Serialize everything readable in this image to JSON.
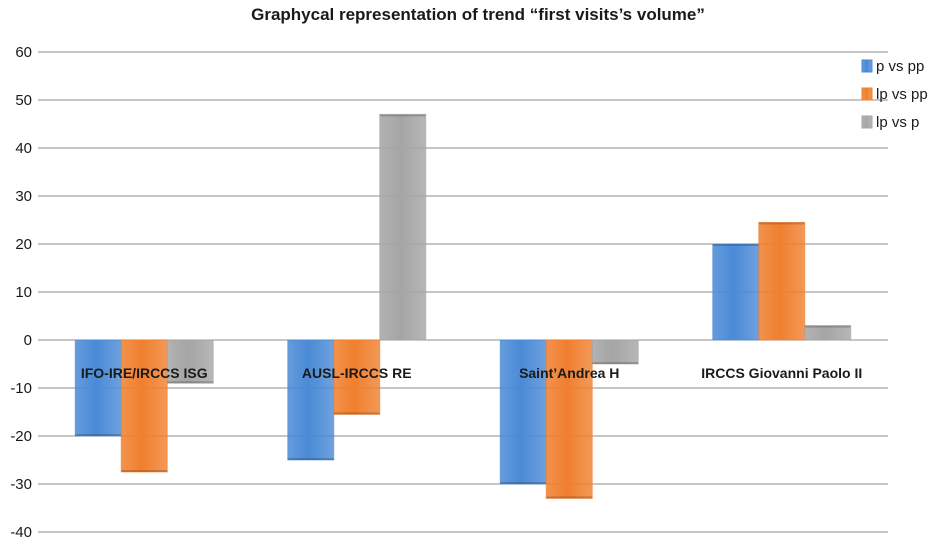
{
  "chart_data": {
    "type": "bar",
    "title": "Graphycal representation of trend “first visits’s volume”",
    "xlabel": "",
    "ylabel": "",
    "categories": [
      "IFO-IRE/IRCCS ISG",
      "AUSL-IRCCS RE",
      "Saint’Andrea H",
      "IRCCS Giovanni Paolo II"
    ],
    "series": [
      {
        "name": "p vs pp",
        "color": "#4a8ad6",
        "values": [
          -20,
          -25,
          -30,
          20
        ]
      },
      {
        "name": "lp vs pp",
        "color": "#f07f2e",
        "values": [
          -27.5,
          -15.5,
          -33,
          24.5
        ]
      },
      {
        "name": "lp vs p",
        "color": "#a5a5a5",
        "values": [
          -9,
          47,
          -5,
          3
        ]
      }
    ],
    "ylim": [
      -40,
      60
    ],
    "yticks": [
      -40,
      -30,
      -20,
      -10,
      0,
      10,
      20,
      30,
      40,
      50,
      60
    ],
    "grid": true,
    "legend_position": "top-right"
  }
}
